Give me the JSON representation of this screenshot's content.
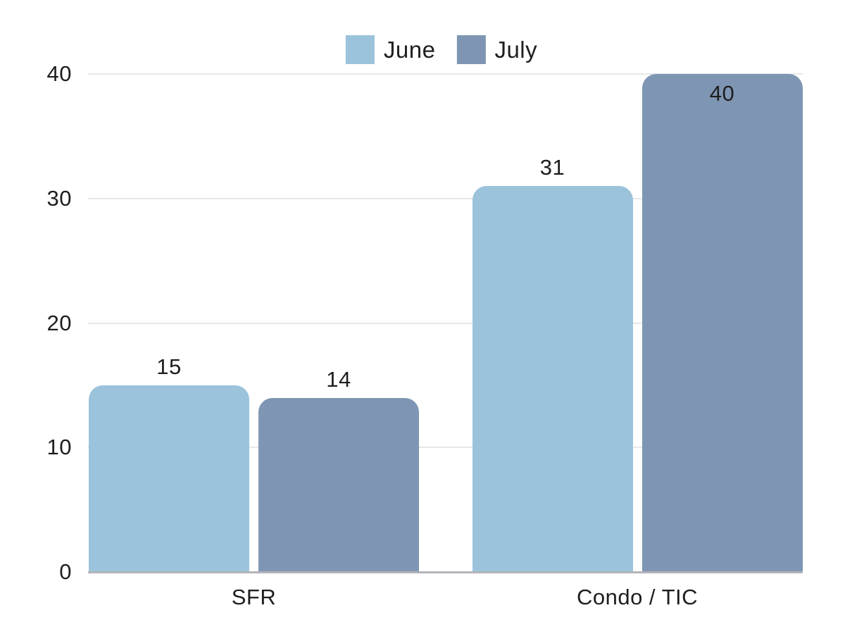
{
  "chart_data": {
    "type": "bar",
    "title": "",
    "xlabel": "",
    "ylabel": "",
    "categories": [
      "SFR",
      "Condo / TIC"
    ],
    "series": [
      {
        "name": "June",
        "color": "#9bc3db",
        "values": [
          15,
          31
        ]
      },
      {
        "name": "July",
        "color": "#7e96b4",
        "values": [
          14,
          40
        ]
      }
    ],
    "data_labels": [
      "15",
      "14",
      "31",
      "40"
    ],
    "yticks": [
      "0",
      "10",
      "20",
      "30",
      "40"
    ],
    "ytick_values": [
      0,
      10,
      20,
      30,
      40
    ],
    "ylim": [
      0,
      40
    ],
    "grid": true,
    "legend_position": "top-center"
  },
  "colors": {
    "background": "#ffffff",
    "gridline": "#e8e8e8",
    "axis_line": "#b4b4b9",
    "text": "#1e1e1e"
  }
}
